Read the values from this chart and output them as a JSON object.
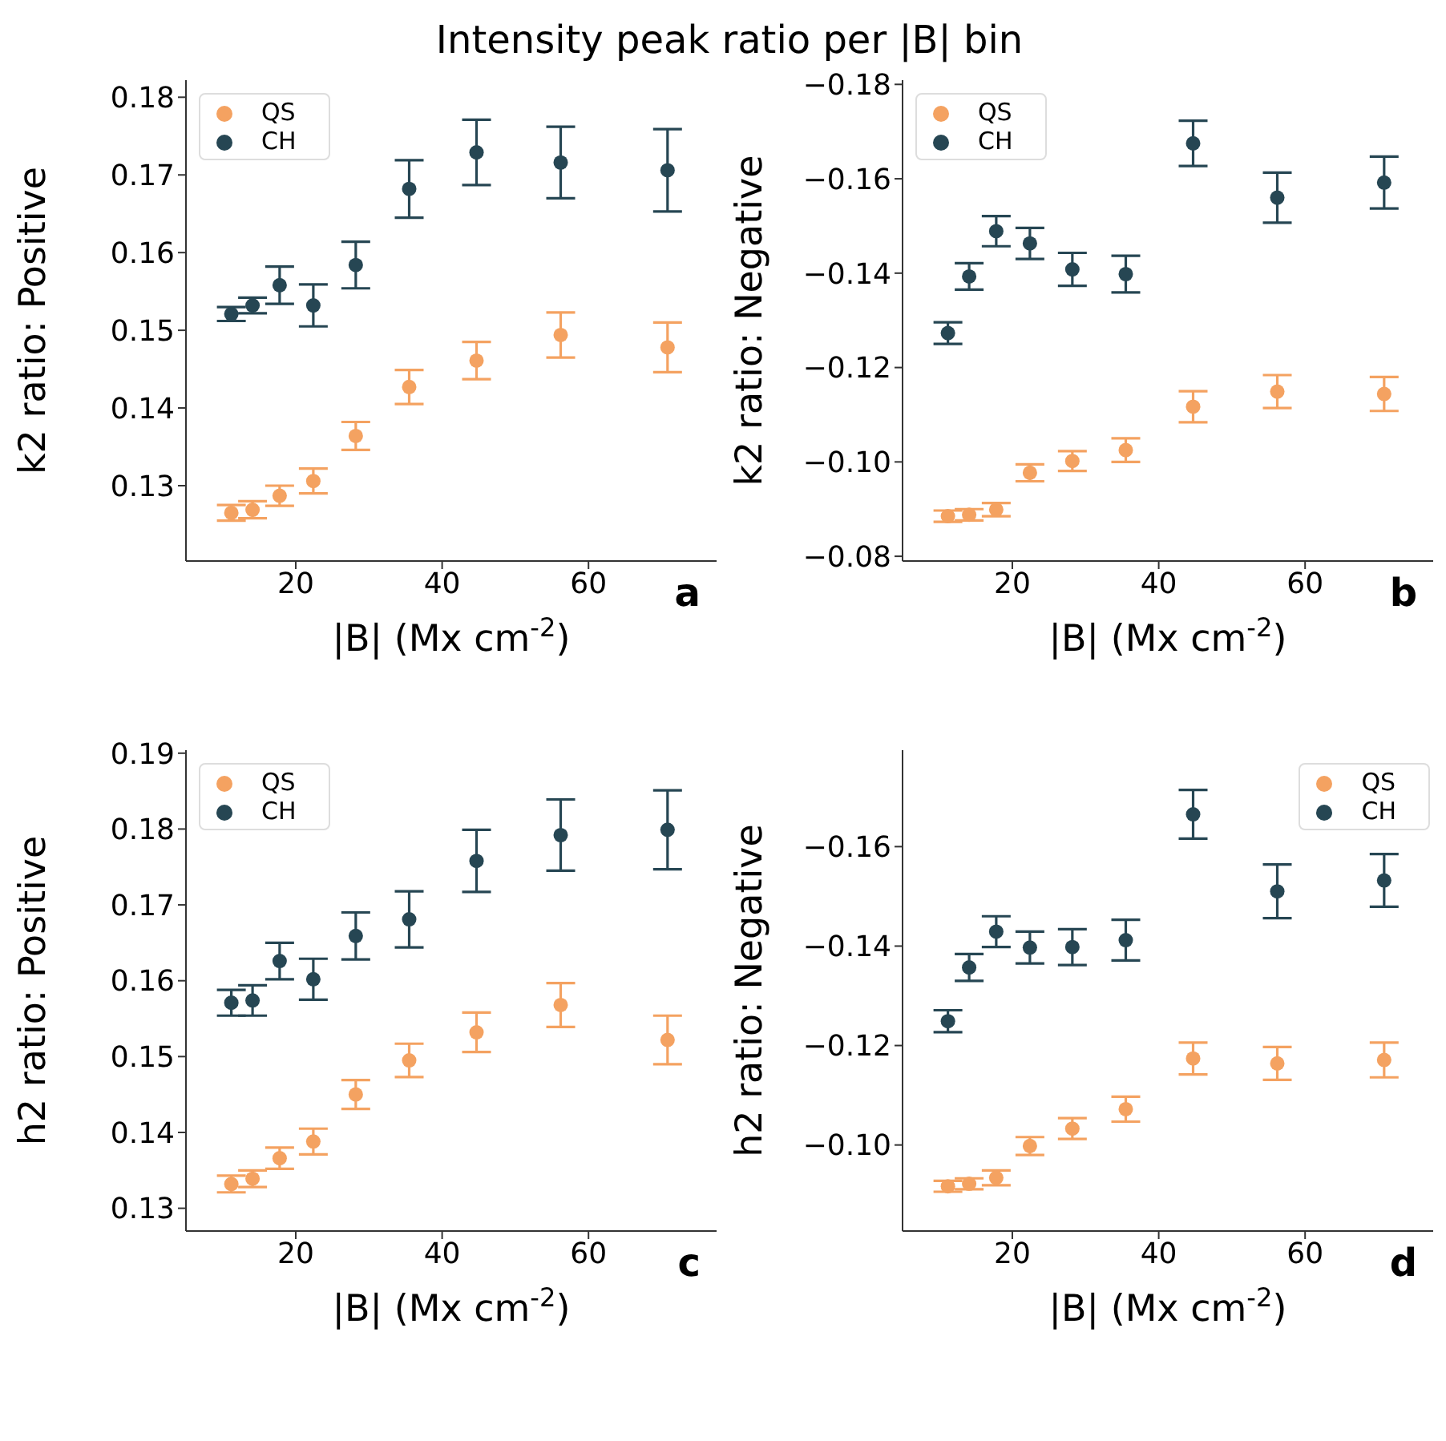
{
  "chart_data": [
    {
      "type": "scatter",
      "title": "Intensity peak ratio per |B| bin",
      "xlabel": "|B| (Mx cm$^{-2}$)",
      "ylabel": "k2 ratio: Positive",
      "annotations": [
        "a"
      ],
      "x": [
        11.2,
        14.1,
        17.8,
        22.4,
        28.2,
        35.5,
        44.7,
        56.2,
        70.8
      ],
      "xlim": [
        5,
        77.5
      ],
      "xticks": [
        20,
        40,
        60
      ],
      "ylim": [
        0.1203,
        0.1822
      ],
      "yticks": [
        0.13,
        0.14,
        0.15,
        0.16,
        0.17,
        0.18
      ],
      "legend": "top left",
      "marker": "circle",
      "series": [
        {
          "name": "QS",
          "color": "#f4a261",
          "values": [
            0.1265,
            0.1269,
            0.1287,
            0.1306,
            0.1364,
            0.1427,
            0.1461,
            0.1494,
            0.1478
          ],
          "errors": [
            0.001,
            0.0011,
            0.0013,
            0.0016,
            0.0018,
            0.0022,
            0.0024,
            0.0029,
            0.0032
          ]
        },
        {
          "name": "CH",
          "color": "#264653",
          "values": [
            0.1521,
            0.1532,
            0.1558,
            0.1532,
            0.1584,
            0.1682,
            0.1729,
            0.1716,
            0.1706
          ],
          "errors": [
            0.0009,
            0.001,
            0.0024,
            0.0027,
            0.003,
            0.0037,
            0.0042,
            0.0046,
            0.0053
          ]
        }
      ]
    },
    {
      "type": "scatter",
      "xlabel": "|B| (Mx cm$^{-2}$)",
      "ylabel": "k2 ratio: Negative",
      "annotations": [
        "b"
      ],
      "x": [
        11.2,
        14.1,
        17.8,
        22.4,
        28.2,
        35.5,
        44.7,
        56.2,
        70.8
      ],
      "xlim": [
        5,
        77.5
      ],
      "xticks": [
        20,
        40,
        60
      ],
      "ylim": [
        -0.079,
        -0.1809
      ],
      "yticks": [
        {
          "value": -0.18,
          "label": "−0.18"
        },
        {
          "value": -0.16,
          "label": "−0.16"
        },
        {
          "value": -0.14,
          "label": "−0.14"
        },
        {
          "value": -0.12,
          "label": "−0.12"
        },
        {
          "value": -0.1,
          "label": "−0.10"
        },
        {
          "value": -0.08,
          "label": "−0.08"
        }
      ],
      "legend": "top left",
      "marker": "circle",
      "series": [
        {
          "name": "QS",
          "color": "#f4a261",
          "values": [
            -0.0885,
            -0.0888,
            -0.0899,
            -0.0977,
            -0.1002,
            -0.1025,
            -0.1117,
            -0.1149,
            -0.1144
          ],
          "errors": [
            0.0012,
            0.0012,
            0.0014,
            0.0018,
            0.0021,
            0.0025,
            0.0033,
            0.0035,
            0.0036
          ]
        },
        {
          "name": "CH",
          "color": "#264653",
          "values": [
            -0.1273,
            -0.1393,
            -0.1489,
            -0.1463,
            -0.1408,
            -0.1398,
            -0.1675,
            -0.156,
            -0.1592
          ],
          "errors": [
            0.0023,
            0.0028,
            0.0032,
            0.0033,
            0.0035,
            0.0039,
            0.0048,
            0.0053,
            0.0055
          ]
        }
      ]
    },
    {
      "type": "scatter",
      "xlabel": "|B| (Mx cm$^{-2}$)",
      "ylabel": "h2 ratio: Positive",
      "annotations": [
        "c"
      ],
      "x": [
        11.2,
        14.1,
        17.8,
        22.4,
        28.2,
        35.5,
        44.7,
        56.2,
        70.8
      ],
      "xlim": [
        5,
        77.5
      ],
      "xticks": [
        20,
        40,
        60
      ],
      "ylim": [
        0.127,
        0.1904
      ],
      "yticks": [
        0.13,
        0.14,
        0.15,
        0.16,
        0.17,
        0.18,
        0.19
      ],
      "legend": "top left",
      "marker": "circle",
      "series": [
        {
          "name": "QS",
          "color": "#f4a261",
          "values": [
            0.1332,
            0.1339,
            0.1366,
            0.1388,
            0.145,
            0.1495,
            0.1532,
            0.1568,
            0.1522
          ],
          "errors": [
            0.0011,
            0.0011,
            0.0014,
            0.0017,
            0.0019,
            0.0022,
            0.0026,
            0.0029,
            0.0032
          ]
        },
        {
          "name": "CH",
          "color": "#264653",
          "values": [
            0.1571,
            0.1574,
            0.1626,
            0.1602,
            0.1659,
            0.1681,
            0.1758,
            0.1792,
            0.1799
          ],
          "errors": [
            0.0017,
            0.002,
            0.0024,
            0.0027,
            0.0031,
            0.0037,
            0.0041,
            0.0047,
            0.0052
          ]
        }
      ]
    },
    {
      "type": "scatter",
      "xlabel": "|B| (Mx cm$^{-2}$)",
      "ylabel": "h2 ratio: Negative",
      "annotations": [
        "d"
      ],
      "x": [
        11.2,
        14.1,
        17.8,
        22.4,
        28.2,
        35.5,
        44.7,
        56.2,
        70.8
      ],
      "xlim": [
        5,
        77.5
      ],
      "xticks": [
        20,
        40,
        60
      ],
      "ylim": [
        -0.0827,
        -0.1794
      ],
      "yticks": [
        {
          "value": -0.16,
          "label": "−0.16"
        },
        {
          "value": -0.14,
          "label": "−0.14"
        },
        {
          "value": -0.12,
          "label": "−0.12"
        },
        {
          "value": -0.1,
          "label": "−0.10"
        }
      ],
      "legend": "top right",
      "marker": "circle",
      "series": [
        {
          "name": "QS",
          "color": "#f4a261",
          "values": [
            -0.0917,
            -0.0922,
            -0.0934,
            -0.0998,
            -0.1033,
            -0.1072,
            -0.1174,
            -0.1164,
            -0.1171
          ],
          "errors": [
            0.0011,
            0.0011,
            0.0015,
            0.0018,
            0.0021,
            0.0025,
            0.0032,
            0.0033,
            0.0035
          ]
        },
        {
          "name": "CH",
          "color": "#264653",
          "values": [
            -0.1249,
            -0.1357,
            -0.1429,
            -0.1397,
            -0.1398,
            -0.1412,
            -0.1665,
            -0.151,
            -0.1532
          ],
          "errors": [
            0.0022,
            0.0027,
            0.0031,
            0.0032,
            0.0036,
            0.0041,
            0.0049,
            0.0054,
            0.0053
          ]
        }
      ]
    }
  ]
}
